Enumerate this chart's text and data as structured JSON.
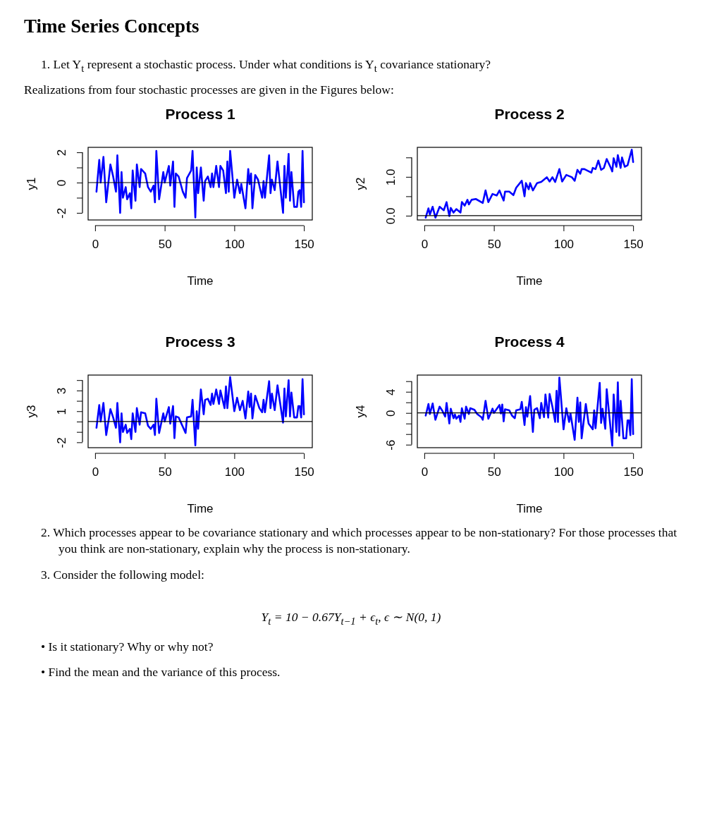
{
  "chart_data": [
    {
      "type": "line",
      "title": "Process 1",
      "xlabel": "Time",
      "ylabel": "y1",
      "xlim": [
        -5,
        156
      ],
      "xticks": [
        0,
        50,
        100,
        150
      ],
      "ylim": [
        -2.47,
        2.33
      ],
      "yticks": [
        -2,
        {
          "value": -1,
          "label": null
        },
        0,
        {
          "value": 1,
          "label": null
        },
        2
      ],
      "ref_lines": [
        {
          "axis": "y",
          "value": 0
        }
      ],
      "annotations": [
        "Time Series Concepts",
        "1. Let Y$_{t}$ represent a stochastic process. Under what conditions is Y$_{t}$ covariance stationary?",
        "Realizations from four stochastic processes are given in the Figures below:"
      ],
      "series": [
        {
          "color": "#0000ff",
          "x": [
            1,
            3,
            4,
            6,
            8,
            11,
            13,
            15,
            16,
            18,
            19,
            20,
            22,
            23,
            25,
            26,
            27,
            29,
            30,
            32,
            33,
            36,
            38,
            40,
            42,
            43,
            44,
            46,
            49,
            50,
            53,
            54,
            56,
            57,
            58,
            60,
            63,
            65,
            66,
            69,
            70,
            72,
            73,
            74,
            76,
            78,
            79,
            81,
            83,
            84,
            85,
            87,
            89,
            90,
            92,
            94,
            95,
            96,
            97,
            100,
            102,
            104,
            105,
            108,
            110,
            111,
            112,
            113,
            115,
            117,
            120,
            121,
            122,
            125,
            126,
            127,
            129,
            131,
            135,
            136,
            137,
            139,
            140,
            141,
            143,
            145,
            146,
            147,
            148,
            149,
            150
          ],
          "values": [
            -0.6,
            1.5,
            0.0,
            1.7,
            -1.3,
            1.2,
            0.4,
            -0.6,
            1.8,
            -2.0,
            0.7,
            -1.0,
            -0.3,
            -1.1,
            -0.7,
            -1.7,
            0.8,
            -1.2,
            1.2,
            -0.3,
            0.9,
            0.6,
            -0.3,
            -0.6,
            -0.2,
            -1.3,
            2.1,
            -1.1,
            0.7,
            0.0,
            1.1,
            -0.2,
            1.4,
            -1.6,
            0.6,
            0.4,
            -0.6,
            -1.0,
            0.3,
            0.8,
            2.1,
            -2.3,
            1.0,
            -0.7,
            1.0,
            -1.2,
            0.1,
            0.4,
            -0.3,
            0.6,
            -0.3,
            1.1,
            -0.3,
            1.1,
            0.8,
            -0.7,
            1.4,
            -0.6,
            2.1,
            -1.0,
            0.2,
            -0.7,
            -0.1,
            -1.7,
            0.9,
            -0.1,
            0.6,
            -1.7,
            0.5,
            0.2,
            -1.0,
            0.1,
            -1.0,
            1.8,
            -0.7,
            0.2,
            -0.5,
            1.4,
            -2.0,
            1.1,
            -1.0,
            1.9,
            -1.2,
            0.7,
            -1.6,
            -1.6,
            -0.6,
            -0.5,
            -1.6,
            2.1,
            -1.3
          ]
        }
      ]
    },
    {
      "type": "line",
      "title": "Process 2",
      "xlabel": "Time",
      "ylabel": "y2",
      "xlim": [
        -5,
        156
      ],
      "xticks": [
        0,
        50,
        100,
        150
      ],
      "ylim": [
        -0.11,
        1.76
      ],
      "yticks": [
        {
          "value": 0,
          "label": "0.0"
        },
        {
          "value": 0.5,
          "label": null
        },
        {
          "value": 1,
          "label": "1.0"
        },
        {
          "value": 1.5,
          "label": null
        }
      ],
      "ref_lines": [
        {
          "axis": "y",
          "value": 0
        }
      ],
      "series": [
        {
          "color": "#0000ff",
          "x": [
            1,
            3,
            4,
            6,
            8,
            11,
            14,
            16,
            18,
            19,
            21,
            23,
            26,
            27,
            29,
            31,
            32,
            34,
            37,
            42,
            44,
            46,
            49,
            52,
            54,
            57,
            58,
            61,
            64,
            66,
            70,
            72,
            73,
            75,
            76,
            78,
            81,
            84,
            88,
            90,
            92,
            94,
            97,
            99,
            102,
            106,
            108,
            110,
            112,
            113,
            115,
            120,
            121,
            123,
            125,
            127,
            129,
            131,
            134,
            135,
            136,
            138,
            139,
            141,
            142,
            144,
            146,
            149,
            150
          ],
          "values": [
            -0.05,
            0.19,
            0.03,
            0.23,
            -0.05,
            0.23,
            0.14,
            0.35,
            -0.01,
            0.2,
            0.08,
            0.17,
            0.08,
            0.35,
            0.26,
            0.41,
            0.29,
            0.41,
            0.43,
            0.33,
            0.65,
            0.35,
            0.56,
            0.52,
            0.65,
            0.39,
            0.62,
            0.62,
            0.53,
            0.72,
            0.9,
            0.5,
            0.84,
            0.68,
            0.84,
            0.65,
            0.84,
            0.87,
            0.99,
            0.88,
            0.99,
            0.87,
            1.2,
            0.88,
            1.05,
            0.99,
            0.9,
            1.18,
            1.08,
            1.2,
            1.2,
            1.11,
            1.23,
            1.2,
            1.42,
            1.18,
            1.23,
            1.46,
            1.23,
            1.14,
            1.48,
            1.26,
            1.56,
            1.23,
            1.5,
            1.26,
            1.3,
            1.7,
            1.38
          ]
        }
      ]
    },
    {
      "type": "line",
      "title": "Process 3",
      "xlabel": "Time",
      "ylabel": "y3",
      "xlim": [
        -5,
        156
      ],
      "xticks": [
        0,
        50,
        100,
        150
      ],
      "ylim": [
        -2.52,
        4.49
      ],
      "yticks": [
        -2,
        {
          "value": -1,
          "label": null
        },
        {
          "value": 0,
          "label": null
        },
        1,
        {
          "value": 2,
          "label": null
        },
        3,
        {
          "value": 4,
          "label": null
        }
      ],
      "ref_lines": [
        {
          "axis": "y",
          "value": 0
        }
      ],
      "series": [
        {
          "color": "#0000ff",
          "x": [
            1,
            3,
            4,
            6,
            8,
            11,
            13,
            15,
            16,
            18,
            19,
            20,
            22,
            23,
            25,
            26,
            27,
            29,
            30,
            32,
            33,
            36,
            38,
            40,
            42,
            43,
            44,
            46,
            49,
            50,
            53,
            54,
            56,
            57,
            58,
            60,
            63,
            65,
            66,
            69,
            70,
            72,
            73,
            74,
            76,
            78,
            79,
            81,
            83,
            84,
            85,
            87,
            89,
            90,
            93,
            94,
            95,
            97,
            100,
            102,
            104,
            106,
            108,
            110,
            111,
            112,
            113,
            115,
            118,
            120,
            121,
            122,
            125,
            126,
            127,
            129,
            131,
            135,
            136,
            137,
            139,
            140,
            141,
            143,
            145,
            146,
            147,
            148,
            149,
            150
          ],
          "values": [
            -0.6,
            1.6,
            0.0,
            1.8,
            -1.3,
            1.2,
            0.4,
            -0.6,
            1.8,
            -2.0,
            0.8,
            -1.0,
            -0.3,
            -1.1,
            -0.7,
            -1.7,
            0.8,
            -1.0,
            1.3,
            -0.3,
            0.9,
            0.8,
            -0.4,
            -0.7,
            -0.3,
            -1.3,
            2.2,
            -1.1,
            0.8,
            0.0,
            1.4,
            -0.2,
            1.5,
            -1.6,
            0.5,
            0.4,
            -0.5,
            -1.1,
            0.4,
            0.5,
            2.1,
            -2.3,
            1.0,
            -0.7,
            3.1,
            0.7,
            2.1,
            2.2,
            1.6,
            2.7,
            1.7,
            3.1,
            1.7,
            3.0,
            1.3,
            3.4,
            1.3,
            4.3,
            1.0,
            2.3,
            1.1,
            2.0,
            0.3,
            2.9,
            1.4,
            2.7,
            0.3,
            2.5,
            1.3,
            0.9,
            2.1,
            0.9,
            3.9,
            1.3,
            2.7,
            1.1,
            3.5,
            -0.1,
            3.2,
            0.5,
            4.0,
            0.5,
            2.8,
            0.4,
            0.4,
            1.5,
            1.5,
            0.4,
            4.1,
            0.7
          ]
        }
      ]
    },
    {
      "type": "line",
      "title": "Process 4",
      "xlabel": "Time",
      "ylabel": "y4",
      "xlim": [
        -5,
        156
      ],
      "xticks": [
        0,
        50,
        100,
        150
      ],
      "ylim": [
        -6.57,
        7.16
      ],
      "yticks": [
        -6,
        {
          "value": -4,
          "label": null
        },
        {
          "value": -2,
          "label": null
        },
        0,
        {
          "value": 2,
          "label": null
        },
        4,
        {
          "value": 6,
          "label": null
        }
      ],
      "ref_lines": [
        {
          "axis": "y",
          "value": 0
        }
      ],
      "annotations": [
        "2. Which processes appear to be covariance stationary and which processes appear to be non-stationary? For those processes that you think are non-stationary, explain why the process is non-stationary.",
        "3. Consider the following model:",
        "Y$_{t}$ = 10 − 0.67Y$_{t−1}$ + ϵ$_{t}$,   ϵ ∼ N(0, 1)",
        "• Is it stationary? Why or why not?",
        "• Find the mean and the variance of this process."
      ],
      "series": [
        {
          "color": "#0000ff",
          "x": [
            1,
            3,
            4,
            6,
            8,
            11,
            13,
            15,
            16,
            18,
            19,
            21,
            22,
            23,
            25,
            26,
            27,
            29,
            30,
            32,
            33,
            36,
            38,
            41,
            42,
            44,
            46,
            49,
            50,
            54,
            55,
            56,
            57,
            58,
            61,
            63,
            65,
            66,
            69,
            70,
            72,
            73,
            74,
            76,
            78,
            79,
            81,
            83,
            84,
            86,
            87,
            89,
            90,
            92,
            94,
            95,
            96,
            97,
            100,
            102,
            104,
            105,
            108,
            110,
            111,
            112,
            113,
            116,
            118,
            121,
            122,
            123,
            126,
            127,
            128,
            130,
            131,
            135,
            136,
            138,
            139,
            140,
            141,
            143,
            145,
            146,
            147,
            148,
            149,
            150
          ],
          "values": [
            -0.5,
            1.7,
            -0.2,
            1.8,
            -1.3,
            1.2,
            0.4,
            -0.7,
            1.9,
            -2.0,
            0.8,
            -1.0,
            -0.3,
            -1.1,
            -0.5,
            -1.7,
            0.9,
            -1.1,
            1.2,
            -0.2,
            0.9,
            0.6,
            -0.2,
            -0.8,
            -1.3,
            2.3,
            -1.1,
            0.8,
            0.0,
            1.5,
            -0.1,
            1.6,
            -1.6,
            0.7,
            0.5,
            -0.5,
            -1.0,
            0.5,
            0.7,
            2.1,
            -2.3,
            1.1,
            -0.7,
            3.2,
            -3.6,
            0.6,
            0.9,
            -1.0,
            1.9,
            -0.8,
            3.5,
            -0.9,
            3.6,
            1.2,
            -1.7,
            4.2,
            -1.7,
            6.7,
            -3.1,
            0.9,
            -1.7,
            -0.1,
            -5.1,
            2.9,
            -1.7,
            2.0,
            -4.8,
            1.7,
            -2.0,
            -3.1,
            0.5,
            -2.9,
            5.7,
            -1.9,
            0.8,
            -3.0,
            4.5,
            -6.2,
            3.5,
            -3.6,
            5.8,
            -4.3,
            2.3,
            -4.8,
            -4.8,
            -1.4,
            -1.4,
            -4.2,
            6.4,
            -4.0
          ]
        }
      ]
    }
  ]
}
